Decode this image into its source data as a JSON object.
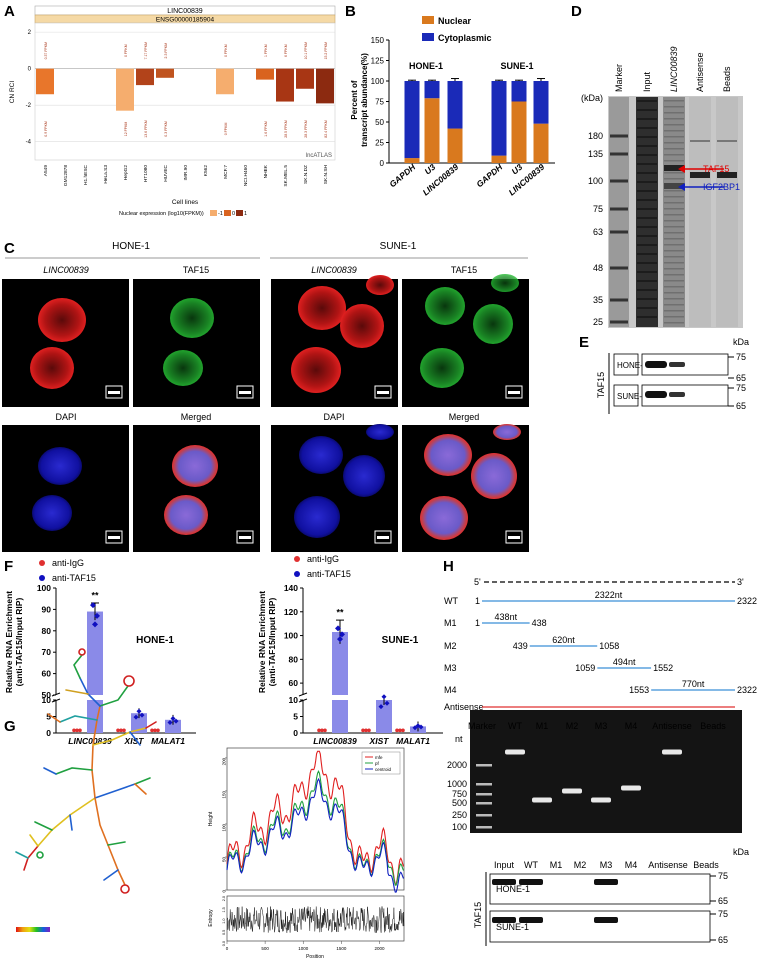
{
  "panels": {
    "A": {
      "letter": "A",
      "title": "LINC00839",
      "gene_id": "ENSG00000185904",
      "y_label": "CN RCI",
      "x_label": "Cell lines",
      "watermark": "lncATLAS",
      "legend": "Nuclear expression (log10(FPKM))",
      "legend_ticks": [
        "-1",
        "0",
        "1"
      ],
      "y_ticks": [
        "2",
        "0",
        "-2",
        "-4"
      ],
      "cell_lines": [
        "A549",
        "GM12878",
        "H1.hESC",
        "HeLa.S3",
        "HepG2",
        "HT1080",
        "HUVEC",
        "IMR.90",
        "K562",
        "MCF.7",
        "NCI.H460",
        "NHEK",
        "SK.MEL.5",
        "SK.N.DZ",
        "SK.N.SH"
      ],
      "upper_labels": [
        "0.37 FPKM",
        "",
        "",
        "",
        "0 FPKM",
        "7.17 FPKM",
        "2.3 FPKM",
        "",
        "",
        "0 FPKM",
        "",
        "1 FPKM",
        "6 FPKM",
        "10.1 FPKM",
        "15.2 FPKM"
      ],
      "lower_labels": [
        "0.9 FPKM",
        "",
        "",
        "",
        "12 FPKM",
        "13.6 FPKM",
        "0.3 FPKM",
        "",
        "",
        "0 FPKM",
        "",
        "1.6 FPKM",
        "28.5 FPKM",
        "28.3 FPKM",
        "82.4 FPKM"
      ]
    },
    "B": {
      "letter": "B",
      "legend_nuclear": "Nuclear",
      "legend_cyto": "Cytoplasmic",
      "y_label_1": "Percent of",
      "y_label_2": "transcript abundance(%)",
      "group1": "HONE-1",
      "group2": "SUNE-1",
      "y_ticks": [
        "150",
        "125",
        "100",
        "75",
        "50",
        "25",
        "0"
      ],
      "categories": [
        "GAPDH",
        "U3",
        "LINC00839",
        "GAPDH",
        "U3",
        "LINC00839"
      ]
    },
    "C": {
      "letter": "C",
      "hone": "HONE-1",
      "sune": "SUNE-1",
      "col_linc": "LINC00839",
      "col_taf": "TAF15",
      "col_dapi": "DAPI",
      "col_merged": "Merged"
    },
    "D": {
      "letter": "D",
      "lanes": [
        "Marker",
        "Input",
        "LINC00839",
        "Antisense",
        "Beads"
      ],
      "kda": "(kDa)",
      "markers": [
        "180",
        "135",
        "100",
        "75",
        "63",
        "48",
        "35",
        "25"
      ],
      "taf15": "TAF15",
      "igf2bp1": "IGF2BP1"
    },
    "E": {
      "letter": "E",
      "side": "TAF15",
      "kda": "kDa",
      "row1": "HONE-1",
      "row2": "SUNE-1",
      "m1": "75",
      "m2": "65"
    },
    "F": {
      "letter": "F",
      "legend_igg": "anti-IgG",
      "legend_taf": "anti-TAF15",
      "y_label_1": "Relative RNA Enrichment",
      "y_label_2": "(anti-TAF15/Input RIP)",
      "hone": "HONE-1",
      "sune": "SUNE-1",
      "categories": [
        "LINC00839",
        "XIST",
        "MALAT1"
      ],
      "sig": "**",
      "y_ticks_upper": [
        "100",
        "90",
        "80",
        "70",
        "60",
        "50"
      ],
      "y_ticks_lower": [
        "10",
        "5",
        "0"
      ]
    },
    "G": {
      "letter": "G",
      "y_label": "Height",
      "y2_label": "Entropy",
      "x_label": "Position",
      "legend": [
        "mfe",
        "pf",
        "centroid"
      ],
      "x_ticks": [
        "0",
        "500",
        "1000",
        "1500",
        "2000"
      ],
      "y_ticks": [
        "0",
        "50",
        "100",
        "150",
        "200"
      ],
      "e_ticks": [
        "0.0",
        "0.5",
        "1.0",
        "1.5",
        "2.0"
      ]
    },
    "H": {
      "letter": "H",
      "five": "5'",
      "three": "3'",
      "constructs": [
        {
          "name": "WT",
          "start": "1",
          "end": "2322",
          "len": "2322nt"
        },
        {
          "name": "M1",
          "start": "1",
          "end": "438",
          "len": "438nt"
        },
        {
          "name": "M2",
          "start": "439",
          "end": "1058",
          "len": "620nt"
        },
        {
          "name": "M3",
          "start": "1059",
          "end": "1552",
          "len": "494nt"
        },
        {
          "name": "M4",
          "start": "1553",
          "end": "2322",
          "len": "770nt"
        },
        {
          "name": "Antisense",
          "start": "",
          "end": "",
          "len": ""
        }
      ],
      "gel_lanes": [
        "Marker",
        "WT",
        "M1",
        "M2",
        "M3",
        "M4",
        "Antisense",
        "Beads"
      ],
      "nt": "nt",
      "gel_markers": [
        "2000",
        "1000",
        "750",
        "500",
        "250",
        "100"
      ],
      "wb_lanes": [
        "Input",
        "WT",
        "M1",
        "M2",
        "M3",
        "M4",
        "Antisense",
        "Beads"
      ],
      "wb_side": "TAF15",
      "wb_kda": "kDa",
      "wb_row1": "HONE-1",
      "wb_row2": "SUNE-1",
      "m1": "75",
      "m2": "65"
    }
  },
  "chart_data": [
    {
      "type": "bar",
      "panel": "A",
      "title": "LINC00839",
      "ylabel": "CN RCI",
      "xlabel": "Cell lines",
      "categories": [
        "A549",
        "GM12878",
        "H1.hESC",
        "HeLa.S3",
        "HepG2",
        "HT1080",
        "HUVEC",
        "IMR.90",
        "K562",
        "MCF.7",
        "NCI.H460",
        "NHEK",
        "SK.MEL.5",
        "SK.N.DZ",
        "SK.N.SH"
      ],
      "values": [
        -1.4,
        null,
        null,
        null,
        -2.3,
        -0.9,
        -0.5,
        null,
        null,
        -1.4,
        null,
        -0.6,
        -1.8,
        -1.1,
        -1.9
      ],
      "colors": [
        "#e8762b",
        null,
        null,
        null,
        "#f5ad6e",
        "#b2431a",
        "#c0541f",
        null,
        null,
        "#f5ad6e",
        null,
        "#d9631f",
        "#a83614",
        "#a83614",
        "#8c2a10"
      ],
      "ylim": [
        -5,
        2.5
      ]
    },
    {
      "type": "bar",
      "panel": "B",
      "stacked": true,
      "categories": [
        "GAPDH",
        "U3",
        "LINC00839",
        "GAPDH",
        "U3",
        "LINC00839"
      ],
      "series": [
        {
          "name": "Nuclear",
          "values": [
            6,
            79,
            42,
            9,
            75,
            48
          ],
          "color": "#d9791e"
        },
        {
          "name": "Cytoplasmic",
          "values": [
            94,
            21,
            58,
            91,
            25,
            52
          ],
          "color": "#1a2ab8"
        }
      ],
      "ylim": [
        0,
        150
      ]
    },
    {
      "type": "bar",
      "panel": "F-HONE-1",
      "categories": [
        "LINC00839",
        "XIST",
        "MALAT1"
      ],
      "series": [
        {
          "name": "anti-IgG",
          "values": [
            1,
            1,
            1
          ]
        },
        {
          "name": "anti-TAF15",
          "values": [
            89,
            6,
            4
          ]
        }
      ]
    },
    {
      "type": "bar",
      "panel": "F-SUNE-1",
      "categories": [
        "LINC00839",
        "XIST",
        "MALAT1"
      ],
      "series": [
        {
          "name": "anti-IgG",
          "values": [
            1,
            1,
            1
          ]
        },
        {
          "name": "anti-TAF15",
          "values": [
            103,
            10,
            2
          ]
        }
      ]
    },
    {
      "type": "line",
      "panel": "G",
      "xlabel": "Position",
      "ylabel": "Height",
      "series": [
        {
          "name": "mfe"
        },
        {
          "name": "pf"
        },
        {
          "name": "centroid"
        }
      ],
      "xlim": [
        0,
        2322
      ],
      "ylim": [
        0,
        200
      ]
    }
  ]
}
